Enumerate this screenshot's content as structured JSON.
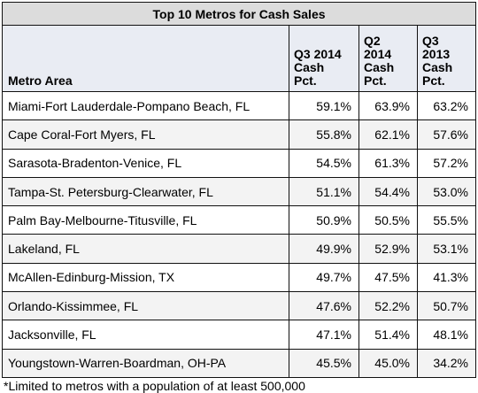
{
  "table": {
    "title": "Top 10 Metros for Cash Sales",
    "headers": [
      "Metro Area",
      "Q3 2014\nCash\nPct.",
      "Q2\n2014\nCash\nPct.",
      "Q3\n2013\nCash\nPct."
    ],
    "rows": [
      {
        "metro": "Miami-Fort Lauderdale-Pompano Beach, FL",
        "q3_2014": "59.1%",
        "q2_2014": "63.9%",
        "q3_2013": "63.2%"
      },
      {
        "metro": "Cape Coral-Fort Myers, FL",
        "q3_2014": "55.8%",
        "q2_2014": "62.1%",
        "q3_2013": "57.6%"
      },
      {
        "metro": "Sarasota-Bradenton-Venice, FL",
        "q3_2014": "54.5%",
        "q2_2014": "61.3%",
        "q3_2013": "57.2%"
      },
      {
        "metro": "Tampa-St. Petersburg-Clearwater, FL",
        "q3_2014": "51.1%",
        "q2_2014": "54.4%",
        "q3_2013": "53.0%"
      },
      {
        "metro": "Palm Bay-Melbourne-Titusville, FL",
        "q3_2014": "50.9%",
        "q2_2014": "50.5%",
        "q3_2013": "55.5%"
      },
      {
        "metro": "Lakeland, FL",
        "q3_2014": "49.9%",
        "q2_2014": "52.9%",
        "q3_2013": "53.1%"
      },
      {
        "metro": "McAllen-Edinburg-Mission, TX",
        "q3_2014": "49.7%",
        "q2_2014": "47.5%",
        "q3_2013": "41.3%"
      },
      {
        "metro": "Orlando-Kissimmee, FL",
        "q3_2014": "47.6%",
        "q2_2014": "52.2%",
        "q3_2013": "50.7%"
      },
      {
        "metro": "Jacksonville, FL",
        "q3_2014": "47.1%",
        "q2_2014": "51.4%",
        "q3_2013": "48.1%"
      },
      {
        "metro": "Youngstown-Warren-Boardman, OH-PA",
        "q3_2014": "45.5%",
        "q2_2014": "45.0%",
        "q3_2013": "34.2%"
      }
    ],
    "footnote": "*Limited to metros with a population of at least 500,000"
  }
}
